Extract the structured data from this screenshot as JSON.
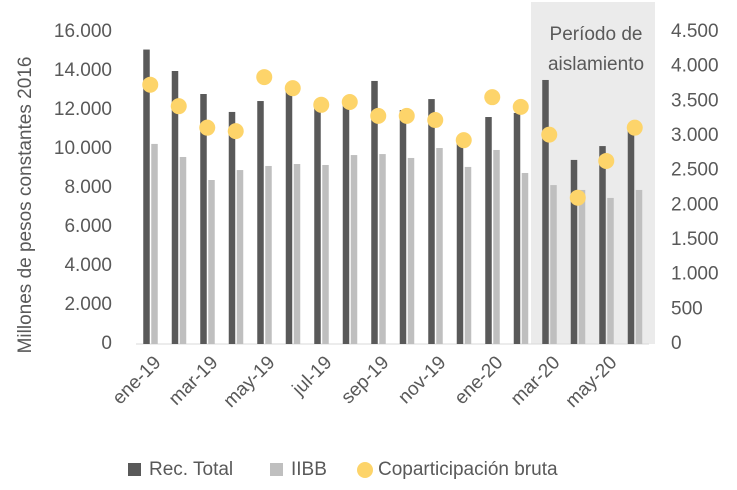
{
  "chart_data": {
    "type": "bar",
    "y_label": "Millones de pesos constantes 2016",
    "categories": [
      "ene-19",
      null,
      "mar-19",
      null,
      "may-19",
      null,
      "jul-19",
      null,
      "sep-19",
      null,
      "nov-19",
      null,
      "ene-20",
      null,
      "mar-20",
      null,
      "may-20",
      null
    ],
    "series": [
      {
        "name": "Rec. Total",
        "type": "bar",
        "color": "#595959",
        "values": [
          15100,
          14000,
          12820,
          11900,
          12460,
          13030,
          12460,
          12460,
          13490,
          12000,
          12560,
          10300,
          11640,
          11850,
          13540,
          9440,
          10150,
          11200
        ]
      },
      {
        "name": "IIBB",
        "type": "bar",
        "color": "#bfbfbf",
        "values": [
          10260,
          9590,
          8410,
          8920,
          9130,
          9230,
          9180,
          9690,
          9740,
          9540,
          10050,
          9080,
          9950,
          8770,
          8150,
          7900,
          7490,
          7900
        ]
      },
      {
        "name": "Coparticipación bruta",
        "type": "scatter",
        "axis": "y2",
        "color": "#fdd46a",
        "values": [
          3740,
          3430,
          3120,
          3070,
          3850,
          3690,
          3450,
          3490,
          3290,
          3290,
          3230,
          2940,
          3560,
          3420,
          3020,
          2110,
          2640,
          3120
        ]
      }
    ],
    "ylim": [
      0,
      16000
    ],
    "yticks": [
      0,
      {
        "value": 2000,
        "label": "2.000"
      },
      {
        "value": 4000,
        "label": "4.000"
      },
      {
        "value": 6000,
        "label": "6.000"
      },
      {
        "value": 8000,
        "label": "8.000"
      },
      {
        "value": 10000,
        "label": "10.000"
      },
      {
        "value": 12000,
        "label": "12.000"
      },
      {
        "value": 14000,
        "label": "14.000"
      },
      {
        "value": 16000,
        "label": "16.000"
      }
    ],
    "y2lim": [
      0,
      4500
    ],
    "y2ticks": [
      0,
      500,
      {
        "value": 1000,
        "label": "1.000"
      },
      {
        "value": 1500,
        "label": "1.500"
      },
      {
        "value": 2000,
        "label": "2.000"
      },
      {
        "value": 2500,
        "label": "2.500"
      },
      {
        "value": 3000,
        "label": "3.000"
      },
      {
        "value": 3500,
        "label": "3.500"
      },
      {
        "value": 4000,
        "label": "4.000"
      },
      {
        "value": 4500,
        "label": "4.500"
      }
    ],
    "shade_from": "mar-20",
    "annotation": [
      "Período de",
      "aislamiento"
    ],
    "legend": "bottom"
  }
}
